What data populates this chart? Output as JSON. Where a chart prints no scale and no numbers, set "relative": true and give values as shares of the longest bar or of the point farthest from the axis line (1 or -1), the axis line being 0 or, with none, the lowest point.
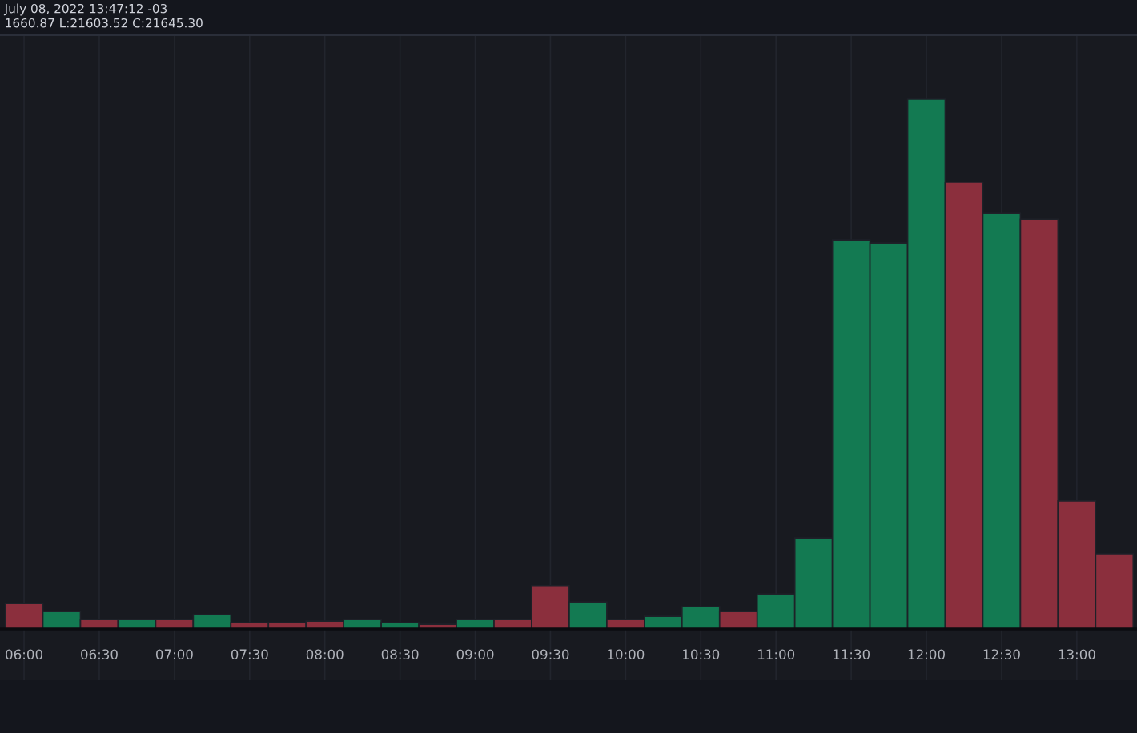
{
  "chart_data": {
    "type": "bar",
    "title": "July 08, 2022 13:47:12 -03",
    "subtitle": "1660.87 L:21603.52 C:21645.30",
    "relative": true,
    "grid": "x",
    "x": [
      6.0,
      6.25,
      6.5,
      6.75,
      7.0,
      7.25,
      7.5,
      7.75,
      8.0,
      8.25,
      8.5,
      8.75,
      9.0,
      9.25,
      9.5,
      9.75,
      10.0,
      10.25,
      10.5,
      10.75,
      11.0,
      11.25,
      11.5,
      11.75,
      12.0,
      12.25,
      12.5,
      12.75,
      13.0,
      13.25
    ],
    "values": [
      0.048,
      0.033,
      0.018,
      0.018,
      0.018,
      0.027,
      0.012,
      0.012,
      0.015,
      0.018,
      0.012,
      0.009,
      0.018,
      0.018,
      0.082,
      0.051,
      0.018,
      0.024,
      0.042,
      0.033,
      0.066,
      0.172,
      0.734,
      0.728,
      1,
      0.843,
      0.785,
      0.773,
      0.242,
      0.142
    ],
    "colors": [
      "#8b2f3d",
      "#137a52",
      "#8b2f3d",
      "#137a52",
      "#8b2f3d",
      "#137a52",
      "#8b2f3d",
      "#8b2f3d",
      "#8b2f3d",
      "#137a52",
      "#137a52",
      "#8b2f3d",
      "#137a52",
      "#8b2f3d",
      "#8b2f3d",
      "#137a52",
      "#8b2f3d",
      "#137a52",
      "#137a52",
      "#8b2f3d",
      "#137a52",
      "#137a52",
      "#137a52",
      "#137a52",
      "#137a52",
      "#8b2f3d",
      "#137a52",
      "#8b2f3d",
      "#8b2f3d",
      "#8b2f3d"
    ],
    "xlim": [
      5.84,
      13.4
    ],
    "xticks": [
      {
        "value": 6.0,
        "label": "06:00"
      },
      {
        "value": 6.5,
        "label": "06:30"
      },
      {
        "value": 7.0,
        "label": "07:00"
      },
      {
        "value": 7.5,
        "label": "07:30"
      },
      {
        "value": 8.0,
        "label": "08:00"
      },
      {
        "value": 8.5,
        "label": "08:30"
      },
      {
        "value": 9.0,
        "label": "09:00"
      },
      {
        "value": 9.5,
        "label": "09:30"
      },
      {
        "value": 10.0,
        "label": "10:00"
      },
      {
        "value": 10.5,
        "label": "10:30"
      },
      {
        "value": 11.0,
        "label": "11:00"
      },
      {
        "value": 11.5,
        "label": "11:30"
      },
      {
        "value": 12.0,
        "label": "12:00"
      },
      {
        "value": 12.5,
        "label": "12:30"
      },
      {
        "value": 13.0,
        "label": "13:00"
      }
    ]
  }
}
